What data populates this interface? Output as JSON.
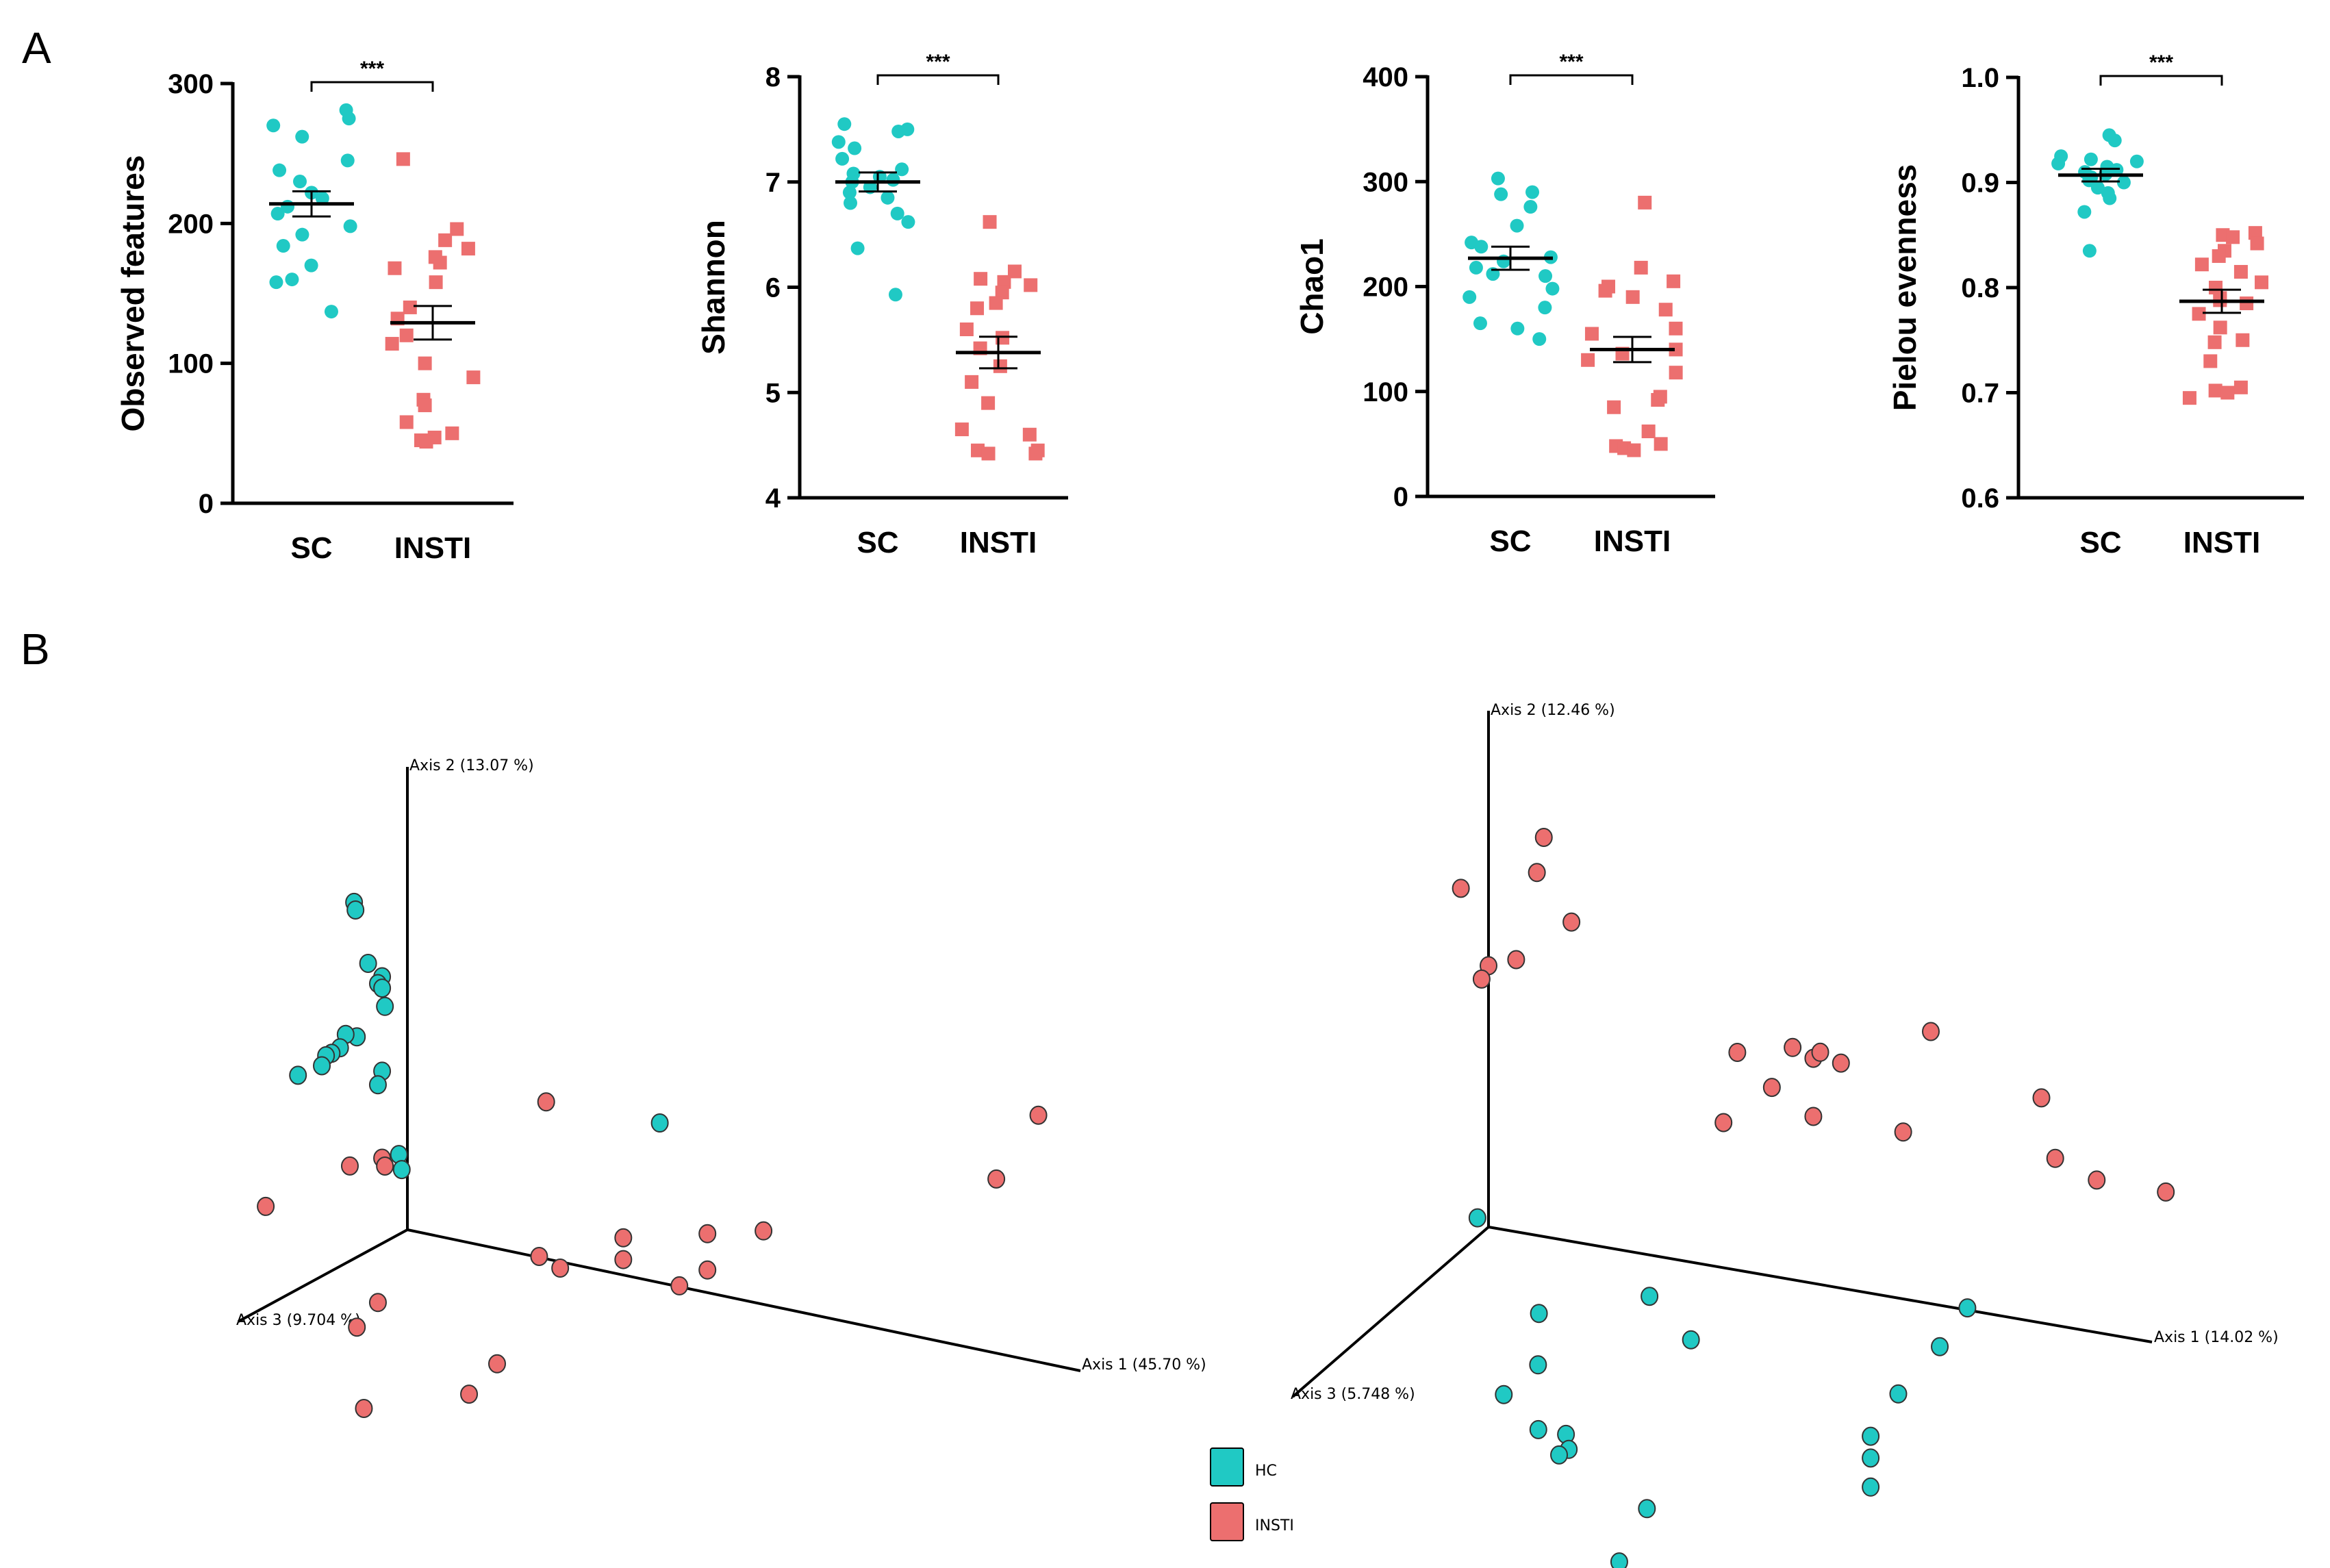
{
  "panel_labels": {
    "a": "A",
    "b": "B"
  },
  "colors": {
    "sc": "#20c9c4",
    "insti": "#ec6f6f",
    "axis": "#000000"
  },
  "chart_data": [
    {
      "type": "scatter",
      "subtype": "dot-plot",
      "ylabel": "Observed features",
      "categories": [
        "SC",
        "INSTI"
      ],
      "ylim": [
        0,
        300
      ],
      "yticks": [
        0,
        100,
        200,
        300
      ],
      "yticklabels": [
        "0",
        "100",
        "200",
        "300"
      ],
      "significance": "***",
      "series": [
        {
          "name": "SC",
          "marker": "circle",
          "mean": 214,
          "sem": 9,
          "values": [
            281,
            275,
            270,
            262,
            245,
            238,
            230,
            222,
            218,
            212,
            207,
            198,
            192,
            184,
            170,
            160,
            158,
            137
          ]
        },
        {
          "name": "INSTI",
          "marker": "square",
          "mean": 129,
          "sem": 12,
          "values": [
            246,
            196,
            188,
            182,
            176,
            172,
            168,
            158,
            140,
            132,
            120,
            114,
            100,
            90,
            74,
            70,
            58,
            50,
            47,
            45,
            44
          ]
        }
      ]
    },
    {
      "type": "scatter",
      "subtype": "dot-plot",
      "ylabel": "Shannon",
      "categories": [
        "SC",
        "INSTI"
      ],
      "ylim": [
        4,
        8
      ],
      "yticks": [
        4,
        5,
        6,
        7,
        8
      ],
      "yticklabels": [
        "4",
        "5",
        "6",
        "7",
        "8"
      ],
      "significance": "***",
      "series": [
        {
          "name": "SC",
          "marker": "circle",
          "mean": 7.0,
          "sem": 0.09,
          "values": [
            7.55,
            7.5,
            7.48,
            7.38,
            7.32,
            7.22,
            7.12,
            7.08,
            7.05,
            7.02,
            7.0,
            6.95,
            6.9,
            6.85,
            6.8,
            6.7,
            6.62,
            6.37,
            5.93
          ]
        },
        {
          "name": "INSTI",
          "marker": "square",
          "mean": 5.38,
          "sem": 0.15,
          "values": [
            6.62,
            6.15,
            6.08,
            6.05,
            6.02,
            5.95,
            5.85,
            5.8,
            5.6,
            5.52,
            5.42,
            5.25,
            5.1,
            4.9,
            4.65,
            4.6,
            4.45,
            4.45,
            4.42,
            4.42
          ]
        }
      ]
    },
    {
      "type": "scatter",
      "subtype": "dot-plot",
      "ylabel": "Chao1",
      "categories": [
        "SC",
        "INSTI"
      ],
      "ylim": [
        0,
        400
      ],
      "yticks": [
        0,
        100,
        200,
        300,
        400
      ],
      "yticklabels": [
        "0",
        "100",
        "200",
        "300",
        "400"
      ],
      "significance": "***",
      "series": [
        {
          "name": "SC",
          "marker": "circle",
          "mean": 227,
          "sem": 11,
          "values": [
            303,
            290,
            288,
            276,
            258,
            242,
            238,
            228,
            224,
            218,
            212,
            210,
            198,
            190,
            180,
            165,
            160,
            150
          ]
        },
        {
          "name": "INSTI",
          "marker": "square",
          "mean": 140,
          "sem": 12,
          "values": [
            280,
            218,
            205,
            200,
            196,
            190,
            178,
            160,
            155,
            140,
            136,
            130,
            118,
            95,
            92,
            85,
            62,
            50,
            48,
            46,
            44
          ]
        }
      ]
    },
    {
      "type": "scatter",
      "subtype": "dot-plot",
      "ylabel": "Pielou evenness",
      "categories": [
        "SC",
        "INSTI"
      ],
      "ylim": [
        0.6,
        1.0
      ],
      "yticks": [
        0.6,
        0.7,
        0.8,
        0.9,
        1.0
      ],
      "yticklabels": [
        "0.6",
        "0.7",
        "0.8",
        "0.9",
        "1.0"
      ],
      "significance": "***",
      "series": [
        {
          "name": "SC",
          "marker": "circle",
          "mean": 0.907,
          "sem": 0.006,
          "values": [
            0.945,
            0.94,
            0.925,
            0.922,
            0.92,
            0.918,
            0.915,
            0.912,
            0.91,
            0.908,
            0.905,
            0.902,
            0.9,
            0.895,
            0.89,
            0.885,
            0.872,
            0.835
          ]
        },
        {
          "name": "INSTI",
          "marker": "square",
          "mean": 0.787,
          "sem": 0.011,
          "values": [
            0.852,
            0.85,
            0.848,
            0.842,
            0.835,
            0.83,
            0.822,
            0.815,
            0.805,
            0.8,
            0.79,
            0.788,
            0.785,
            0.775,
            0.762,
            0.75,
            0.748,
            0.73,
            0.705,
            0.702,
            0.7,
            0.695
          ]
        }
      ]
    },
    {
      "type": "scatter",
      "subtype": "pcoa-3d",
      "axis_labels": {
        "x": "Axis 1 (45.70 %)",
        "y": "Axis 2 (13.07 %)",
        "z": "Axis 3 (9.704 %)"
      },
      "series": [
        {
          "name": "HC",
          "points": [
            [
              -0.35,
              0.88,
              0.05
            ],
            [
              -0.34,
              0.86,
              0.05
            ],
            [
              -0.25,
              0.72,
              0.05
            ],
            [
              -0.12,
              0.7,
              0.1
            ],
            [
              -0.18,
              0.67,
              0.05
            ],
            [
              -0.15,
              0.66,
              0.05
            ],
            [
              -0.1,
              0.62,
              0.1
            ],
            [
              -0.3,
              0.52,
              0.1
            ],
            [
              -0.38,
              0.52,
              0.1
            ],
            [
              -0.42,
              0.48,
              0.1
            ],
            [
              -0.48,
              0.46,
              0.1
            ],
            [
              -0.52,
              0.45,
              0.1
            ],
            [
              -0.55,
              0.42,
              0.1
            ],
            [
              -0.72,
              0.38,
              0.1
            ],
            [
              -0.12,
              0.44,
              0.1
            ],
            [
              -0.15,
              0.4,
              0.1
            ],
            [
              0.0,
              0.22,
              0.1
            ],
            [
              0.02,
              0.18,
              0.1
            ],
            [
              1.8,
              0.44,
              0.0
            ]
          ]
        },
        {
          "name": "INSTI",
          "points": [
            [
              4.5,
              0.68,
              0.0
            ],
            [
              4.2,
              0.48,
              0.0
            ],
            [
              1.05,
              0.45,
              0.1
            ],
            [
              -0.12,
              0.2,
              0.1
            ],
            [
              -0.1,
              0.18,
              0.1
            ],
            [
              -0.35,
              0.16,
              0.1
            ],
            [
              -0.95,
              0.0,
              0.1
            ],
            [
              1.6,
              0.12,
              0.1
            ],
            [
              1.6,
              0.06,
              0.1
            ],
            [
              2.2,
              0.18,
              0.1
            ],
            [
              2.2,
              0.08,
              0.1
            ],
            [
              2.6,
              0.22,
              0.1
            ],
            [
              2.0,
              0.02,
              0.1
            ],
            [
              1.0,
              0.02,
              0.1
            ],
            [
              1.15,
              0.0,
              0.1
            ],
            [
              -0.15,
              -0.2,
              0.1
            ],
            [
              -0.3,
              -0.28,
              0.1
            ],
            [
              0.7,
              -0.3,
              0.1
            ],
            [
              0.5,
              -0.4,
              0.1
            ],
            [
              -0.25,
              -0.5,
              0.1
            ]
          ]
        }
      ]
    },
    {
      "type": "scatter",
      "subtype": "pcoa-3d",
      "axis_labels": {
        "x": "Axis 1 (14.02 %)",
        "y": "Axis 2 (12.46 %)",
        "z": "Axis 3 (5.748 %)"
      },
      "series": [
        {
          "name": "HC",
          "points": [
            [
              -0.08,
              0.02,
              0.0
            ],
            [
              0.5,
              -0.3,
              0.2
            ],
            [
              0.4,
              -0.2,
              0.05
            ],
            [
              1.2,
              -0.1,
              0.05
            ],
            [
              1.5,
              -0.2,
              0.05
            ],
            [
              3.3,
              -0.1,
              0.05
            ],
            [
              3.5,
              0.02,
              0.05
            ],
            [
              3.0,
              -0.25,
              0.05
            ],
            [
              2.8,
              -0.38,
              0.05
            ],
            [
              2.8,
              -0.44,
              0.05
            ],
            [
              2.8,
              -0.52,
              0.05
            ],
            [
              0.5,
              -0.3,
              0.55
            ],
            [
              0.75,
              -0.38,
              0.55
            ],
            [
              0.95,
              -0.38,
              0.55
            ],
            [
              0.97,
              -0.42,
              0.55
            ],
            [
              0.9,
              -0.44,
              0.55
            ],
            [
              1.5,
              -0.56,
              0.5
            ],
            [
              1.3,
              -0.72,
              0.5
            ]
          ]
        },
        {
          "name": "INSTI",
          "points": [
            [
              0.4,
              1.1,
              0.0
            ],
            [
              0.35,
              1.0,
              0.0
            ],
            [
              0.6,
              0.88,
              0.0
            ],
            [
              -0.2,
              0.92,
              0.0
            ],
            [
              0.2,
              0.75,
              0.0
            ],
            [
              0.0,
              0.72,
              0.0
            ],
            [
              -0.05,
              0.68,
              0.0
            ],
            [
              1.8,
              0.6,
              0.0
            ],
            [
              2.2,
              0.64,
              0.0
            ],
            [
              2.35,
              0.62,
              0.0
            ],
            [
              2.4,
              0.64,
              0.0
            ],
            [
              2.55,
              0.62,
              0.0
            ],
            [
              3.2,
              0.75,
              0.0
            ],
            [
              4.0,
              0.62,
              0.0
            ],
            [
              2.05,
              0.52,
              0.0
            ],
            [
              2.35,
              0.46,
              0.0
            ],
            [
              3.0,
              0.46,
              0.0
            ],
            [
              1.7,
              0.4,
              0.0
            ],
            [
              4.1,
              0.46,
              0.0
            ],
            [
              4.4,
              0.42,
              0.0
            ],
            [
              4.9,
              0.42,
              0.0
            ]
          ]
        }
      ]
    }
  ],
  "legend": {
    "items": [
      {
        "label": "HC",
        "color": "#20c9c4"
      },
      {
        "label": "INSTI",
        "color": "#ec6f6f"
      }
    ]
  }
}
